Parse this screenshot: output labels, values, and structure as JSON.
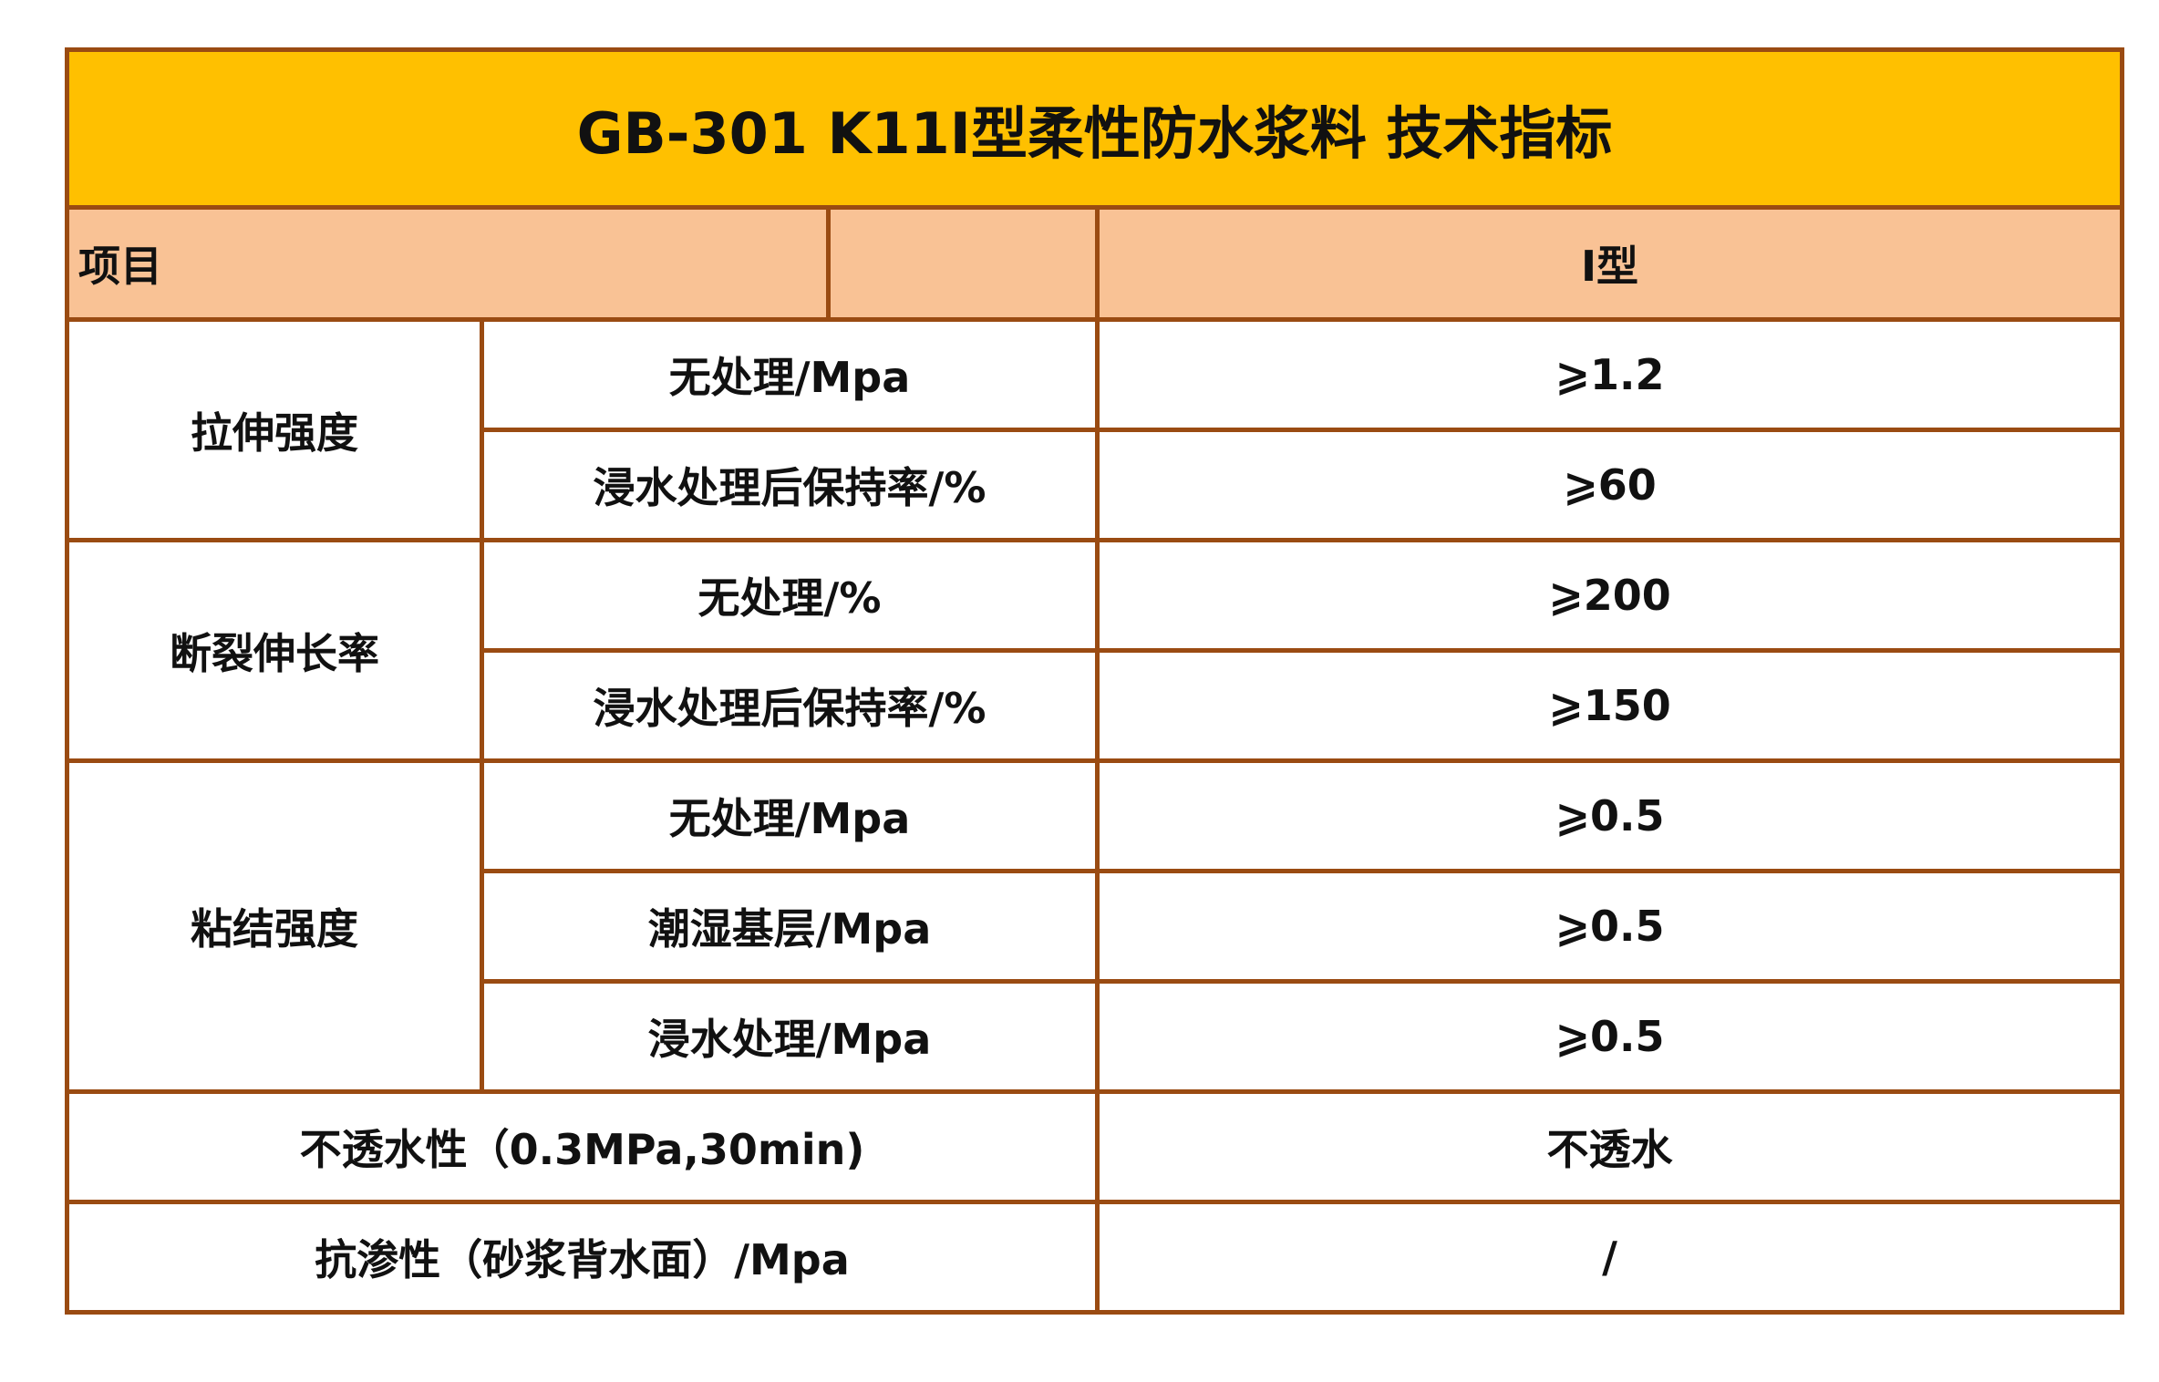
{
  "title": "GB-301 K11Ⅰ型柔性防水浆料  技术指标",
  "header": {
    "item_label": "项目",
    "empty": "",
    "type_label": "Ⅰ型"
  },
  "groups": [
    {
      "name": "拉伸强度",
      "rows": [
        {
          "condition": "无处理/Mpa",
          "value": "⩾1.2"
        },
        {
          "condition": "浸水处理后保持率/%",
          "value": "⩾60"
        }
      ]
    },
    {
      "name": "断裂伸长率",
      "rows": [
        {
          "condition": "无处理/%",
          "value": "⩾200"
        },
        {
          "condition": "浸水处理后保持率/%",
          "value": "⩾150"
        }
      ]
    },
    {
      "name": "粘结强度",
      "rows": [
        {
          "condition": "无处理/Mpa",
          "value": "⩾0.5"
        },
        {
          "condition": "潮湿基层/Mpa",
          "value": "⩾0.5"
        },
        {
          "condition": "浸水处理/Mpa",
          "value": "⩾0.5"
        }
      ]
    }
  ],
  "extra_rows": [
    {
      "item": "不透水性（0.3MPa,30min)",
      "value": "不透水"
    },
    {
      "item": "抗渗性（砂浆背水面）/Mpa",
      "value": "/"
    }
  ],
  "colors": {
    "title_bg": "#ffc000",
    "header_bg": "#f9c295",
    "border": "#9a4b12"
  }
}
